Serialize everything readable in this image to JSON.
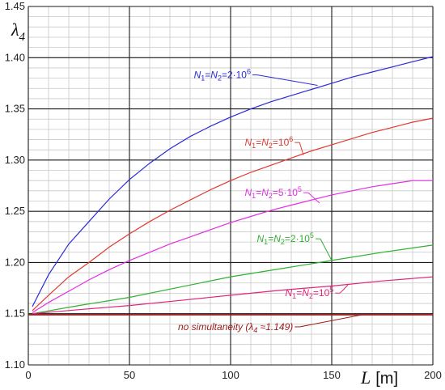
{
  "chart_data": {
    "type": "line",
    "ylabel_main": "λ",
    "ylabel_sub": "4",
    "xlabel_main": "L",
    "xlabel_unit": "[m]",
    "xlim": [
      0,
      200
    ],
    "ylim": [
      1.1,
      1.45
    ],
    "x_ticks": [
      0,
      50,
      100,
      150,
      200
    ],
    "x_tick_labels": [
      "0",
      "50",
      "100",
      "150",
      "200"
    ],
    "y_ticks": [
      1.1,
      1.15,
      1.2,
      1.25,
      1.3,
      1.35,
      1.4,
      1.45
    ],
    "y_tick_labels": [
      "1.10",
      "1.15",
      "1.20",
      "1.25",
      "1.30",
      "1.35",
      "1.40",
      "1.45"
    ],
    "grid": true,
    "series": [
      {
        "label_parts": [
          {
            "t": "N",
            "i": true
          },
          {
            "t": "1",
            "s": "sub"
          },
          {
            "t": "="
          },
          {
            "t": "N",
            "i": true
          },
          {
            "t": "2",
            "s": "sub"
          },
          {
            "t": "=2·10"
          },
          {
            "t": "6",
            "s": "sup"
          }
        ],
        "color": "#2b2bd6",
        "x": [
          2,
          10,
          20,
          30,
          40,
          50,
          60,
          70,
          80,
          90,
          100,
          110,
          120,
          130,
          140,
          150,
          160,
          170,
          180,
          190,
          200
        ],
        "y": [
          1.157,
          1.188,
          1.218,
          1.24,
          1.262,
          1.281,
          1.297,
          1.311,
          1.323,
          1.333,
          1.342,
          1.35,
          1.357,
          1.363,
          1.369,
          1.375,
          1.381,
          1.386,
          1.391,
          1.396,
          1.401
        ],
        "label_at": [
          110,
          1.38
        ],
        "label_anchor": "end",
        "leader_to": [
          143,
          1.373
        ]
      },
      {
        "label_parts": [
          {
            "t": "N",
            "i": true
          },
          {
            "t": "1",
            "s": "sub"
          },
          {
            "t": "="
          },
          {
            "t": "N",
            "i": true
          },
          {
            "t": "2",
            "s": "sub"
          },
          {
            "t": "=10"
          },
          {
            "t": "6",
            "s": "sup"
          }
        ],
        "color": "#e03a2e",
        "x": [
          2,
          10,
          20,
          30,
          40,
          50,
          60,
          70,
          80,
          90,
          100,
          110,
          120,
          130,
          140,
          150,
          160,
          170,
          180,
          190,
          200
        ],
        "y": [
          1.153,
          1.168,
          1.186,
          1.2,
          1.215,
          1.228,
          1.24,
          1.251,
          1.261,
          1.271,
          1.28,
          1.288,
          1.295,
          1.302,
          1.309,
          1.315,
          1.321,
          1.327,
          1.332,
          1.337,
          1.341
        ],
        "label_at": [
          107,
          1.314
        ],
        "label_anchor": "start",
        "leader_to": [
          136,
          1.305
        ]
      },
      {
        "label_parts": [
          {
            "t": "N",
            "i": true
          },
          {
            "t": "1",
            "s": "sub"
          },
          {
            "t": "="
          },
          {
            "t": "N",
            "i": true
          },
          {
            "t": "2",
            "s": "sub"
          },
          {
            "t": "=5·10"
          },
          {
            "t": "5",
            "s": "sup"
          }
        ],
        "color": "#e22ee2",
        "x": [
          2,
          10,
          20,
          30,
          40,
          50,
          60,
          70,
          80,
          90,
          100,
          110,
          120,
          130,
          140,
          150,
          160,
          170,
          180,
          190,
          200
        ],
        "y": [
          1.151,
          1.161,
          1.172,
          1.183,
          1.193,
          1.202,
          1.21,
          1.218,
          1.225,
          1.232,
          1.239,
          1.245,
          1.251,
          1.256,
          1.261,
          1.266,
          1.27,
          1.274,
          1.277,
          1.28,
          1.28
        ],
        "label_at": [
          107,
          1.265
        ],
        "label_anchor": "start",
        "leader_to": [
          144,
          1.258
        ]
      },
      {
        "label_parts": [
          {
            "t": "N",
            "i": true
          },
          {
            "t": "1",
            "s": "sub"
          },
          {
            "t": "="
          },
          {
            "t": "N",
            "i": true
          },
          {
            "t": "2",
            "s": "sub"
          },
          {
            "t": "=2·10"
          },
          {
            "t": "5",
            "s": "sup"
          }
        ],
        "color": "#2fb02f",
        "x": [
          2,
          25,
          50,
          75,
          100,
          125,
          150,
          175,
          200
        ],
        "y": [
          1.15,
          1.158,
          1.166,
          1.176,
          1.186,
          1.194,
          1.202,
          1.21,
          1.217
        ],
        "label_at": [
          113,
          1.22
        ],
        "label_anchor": "start",
        "leader_to": [
          150,
          1.202
        ]
      },
      {
        "label_parts": [
          {
            "t": "N",
            "i": true
          },
          {
            "t": "1",
            "s": "sub"
          },
          {
            "t": "="
          },
          {
            "t": "N",
            "i": true
          },
          {
            "t": "2",
            "s": "sub"
          },
          {
            "t": "=10"
          },
          {
            "t": "5",
            "s": "sup"
          }
        ],
        "color": "#e0257a",
        "x": [
          2,
          25,
          50,
          75,
          100,
          125,
          150,
          175,
          200
        ],
        "y": [
          1.15,
          1.154,
          1.158,
          1.163,
          1.168,
          1.173,
          1.177,
          1.182,
          1.186
        ],
        "label_at": [
          127,
          1.167
        ],
        "label_anchor": "start",
        "leader_to": [
          158,
          1.178
        ]
      },
      {
        "label_parts": [
          {
            "t": "no simultaneity (",
            "i": true
          },
          {
            "t": "λ",
            "i": true
          },
          {
            "t": "4",
            "s": "sub",
            "i": true
          },
          {
            "t": " ≈1.149)",
            "i": true
          }
        ],
        "color": "#9b1b1b",
        "x": [
          0,
          200
        ],
        "y": [
          1.149,
          1.149
        ],
        "label_at": [
          74,
          1.134
        ],
        "label_anchor": "start",
        "leader_to": [
          165,
          1.149
        ]
      }
    ],
    "background_color": "#ffffff",
    "major_grid_color": "#1a1a1a",
    "minor_grid_color": "#c8c8c8"
  }
}
